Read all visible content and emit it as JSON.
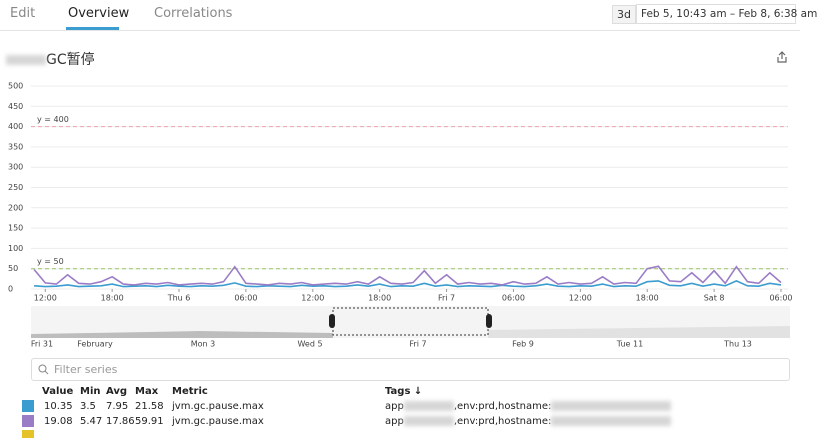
{
  "tabs": [
    "Edit",
    "Overview",
    "Correlations"
  ],
  "range_badge": "3d",
  "range": "Feb 5, 10:43 am – Feb 8, 6:38 am",
  "chart_data": {
    "type": "line",
    "title": "GC暂停",
    "x": [
      11,
      12,
      13,
      14,
      15,
      16,
      17,
      18,
      19,
      20,
      21,
      22,
      23,
      24,
      25,
      26,
      27,
      28,
      29,
      30,
      31,
      32,
      33,
      34,
      35,
      36,
      37,
      38,
      39,
      40,
      41,
      42,
      43,
      44,
      45,
      46,
      47,
      48,
      49,
      50,
      51,
      52,
      53,
      54,
      55,
      56,
      57,
      58,
      59,
      60,
      61,
      62,
      63,
      64,
      65,
      66,
      67,
      68,
      69,
      70,
      71,
      72,
      73,
      74,
      75,
      76,
      77,
      78
    ],
    "xlim": [
      10.72,
      78.63
    ],
    "xticks": [
      {
        "value": 12,
        "label": "12:00"
      },
      {
        "value": 18,
        "label": "18:00"
      },
      {
        "value": 24,
        "label": "Thu 6"
      },
      {
        "value": 30,
        "label": "06:00"
      },
      {
        "value": 36,
        "label": "12:00"
      },
      {
        "value": 42,
        "label": "18:00"
      },
      {
        "value": 48,
        "label": "Fri 7"
      },
      {
        "value": 54,
        "label": "06:00"
      },
      {
        "value": 60,
        "label": "12:00"
      },
      {
        "value": 66,
        "label": "18:00"
      },
      {
        "value": 72,
        "label": "Sat 8"
      },
      {
        "value": 78,
        "label": "06:00"
      }
    ],
    "ylim": [
      0,
      500
    ],
    "yticks": [
      0,
      50,
      100,
      150,
      200,
      250,
      300,
      350,
      400,
      450,
      500
    ],
    "grid": true,
    "markers": [
      {
        "value": 400,
        "label": "y = 400",
        "color": "#e8a6b0"
      },
      {
        "value": 50,
        "label": "y = 50",
        "color": "#9cc46a"
      }
    ],
    "series": [
      {
        "color": "#3a9ccf",
        "values": [
          8,
          6,
          7,
          10,
          6,
          7,
          8,
          12,
          6,
          7,
          8,
          6,
          9,
          7,
          6,
          8,
          7,
          9,
          15,
          7,
          6,
          8,
          7,
          6,
          9,
          7,
          8,
          6,
          7,
          10,
          7,
          12,
          6,
          8,
          7,
          14,
          7,
          10,
          6,
          8,
          7,
          6,
          9,
          7,
          6,
          8,
          12,
          7,
          6,
          8,
          7,
          12,
          6,
          8,
          7,
          18,
          20,
          9,
          8,
          14,
          7,
          12,
          8,
          20,
          8,
          7,
          14,
          10
        ]
      },
      {
        "color": "#9a7cc6",
        "values": [
          48,
          15,
          12,
          35,
          14,
          12,
          18,
          30,
          12,
          10,
          14,
          12,
          16,
          10,
          12,
          14,
          12,
          18,
          55,
          14,
          12,
          10,
          14,
          12,
          16,
          10,
          12,
          14,
          12,
          18,
          12,
          30,
          14,
          12,
          16,
          45,
          14,
          35,
          12,
          16,
          12,
          14,
          10,
          18,
          12,
          14,
          30,
          12,
          16,
          12,
          14,
          30,
          12,
          16,
          14,
          50,
          56,
          20,
          18,
          40,
          16,
          45,
          14,
          55,
          18,
          14,
          40,
          16
        ]
      }
    ]
  },
  "navigator": {
    "labels": [
      "Fri 31",
      "February",
      "Mon 3",
      "Wed 5",
      "Fri 7",
      "Feb 9",
      "Tue 11",
      "Thu 13"
    ]
  },
  "filter_placeholder": "Filter series",
  "table": {
    "headers": [
      "Value",
      "Min",
      "Avg",
      "Max",
      "Metric",
      "Tags ↓"
    ],
    "rows": [
      [
        10.35,
        3.5,
        7.95,
        21.58,
        "jvm.gc.pause.max"
      ],
      [
        19.08,
        5.47,
        17.86,
        59.91,
        "jvm.gc.pause.max"
      ]
    ],
    "tags": [
      [
        "app",
        ",env:prd,hostname:"
      ],
      [
        "app",
        ",env:prd,hostname:"
      ]
    ]
  }
}
